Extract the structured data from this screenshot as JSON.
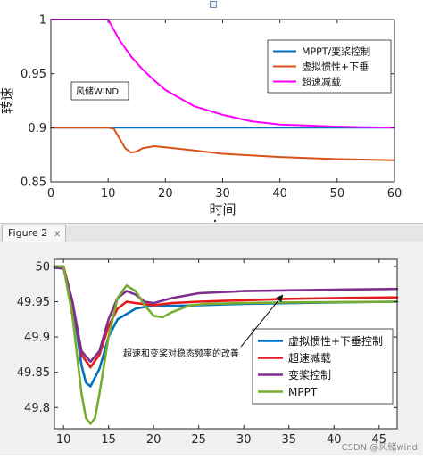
{
  "window": {
    "tab_label": "Figure 2",
    "tab_close": "x",
    "watermark": "CSDN @风储wind"
  },
  "chart_data": [
    {
      "type": "line",
      "xlabel": "时间",
      "ylabel": "转速",
      "xlim": [
        0,
        60
      ],
      "ylim": [
        0.85,
        1.0
      ],
      "xticks": [
        0,
        10,
        20,
        30,
        40,
        50,
        60
      ],
      "yticks": [
        0.85,
        0.9,
        0.95,
        1
      ],
      "ytick_labels": [
        "0.85",
        "0.9",
        "0.95",
        "1"
      ],
      "grid": false,
      "annotation": "风储WIND",
      "legend_position": "top-right",
      "series": [
        {
          "name": "MPPT/变桨控制",
          "color": "#0072BD",
          "x": [
            0,
            60
          ],
          "y": [
            0.9,
            0.9
          ]
        },
        {
          "name": "虚拟惯性+下垂",
          "color": "#D95319",
          "x": [
            0,
            10,
            11,
            12,
            13,
            14,
            15,
            16,
            18,
            20,
            25,
            30,
            40,
            50,
            60
          ],
          "y": [
            0.9,
            0.9,
            0.899,
            0.89,
            0.881,
            0.877,
            0.878,
            0.881,
            0.883,
            0.882,
            0.879,
            0.876,
            0.873,
            0.871,
            0.87
          ]
        },
        {
          "name": "超速减载",
          "color": "#FF00FF",
          "x": [
            0,
            10,
            12,
            14,
            16,
            18,
            20,
            25,
            30,
            35,
            40,
            45,
            50,
            55,
            60
          ],
          "y": [
            1.0,
            1.0,
            0.981,
            0.966,
            0.954,
            0.944,
            0.935,
            0.92,
            0.912,
            0.906,
            0.903,
            0.902,
            0.901,
            0.9005,
            0.9002
          ]
        }
      ]
    },
    {
      "type": "line",
      "xlabel": "",
      "ylabel": "",
      "xlim": [
        9,
        47
      ],
      "ylim": [
        49.77,
        50.01
      ],
      "xticks": [
        10,
        15,
        20,
        25,
        30,
        35,
        40,
        45
      ],
      "yticks": [
        49.8,
        49.85,
        49.9,
        49.95,
        50
      ],
      "ytick_labels": [
        "49.8",
        "49.85",
        "49.9",
        "49.95",
        "50"
      ],
      "grid": false,
      "annotation": "超速和变桨对稳态频率的改善",
      "legend_position": "lower-right",
      "series": [
        {
          "name": "虚拟惯性+下垂控制",
          "color": "#0072BD",
          "x": [
            9,
            10,
            11,
            12,
            12.5,
            13,
            14,
            15,
            16,
            18,
            20,
            22,
            25,
            30,
            35,
            40,
            47
          ],
          "y": [
            50.0,
            50.0,
            49.95,
            49.86,
            49.835,
            49.83,
            49.855,
            49.9,
            49.925,
            49.94,
            49.945,
            49.944,
            49.945,
            49.947,
            49.948,
            49.949,
            49.95
          ]
        },
        {
          "name": "超速减载",
          "color": "#E41A1C",
          "x": [
            9,
            10,
            11,
            12,
            13,
            14,
            15,
            16,
            17,
            18,
            20,
            22,
            25,
            30,
            35,
            40,
            47
          ],
          "y": [
            50.0,
            50.0,
            49.95,
            49.875,
            49.857,
            49.875,
            49.915,
            49.94,
            49.95,
            49.948,
            49.945,
            49.948,
            49.95,
            49.952,
            49.954,
            49.955,
            49.956
          ]
        },
        {
          "name": "变桨控制",
          "color": "#7E2F8E",
          "x": [
            9,
            10,
            11,
            12,
            13,
            14,
            15,
            16,
            17,
            18,
            19,
            20,
            22,
            25,
            30,
            35,
            40,
            47
          ],
          "y": [
            49.998,
            49.997,
            49.95,
            49.88,
            49.865,
            49.88,
            49.925,
            49.955,
            49.965,
            49.96,
            49.95,
            49.948,
            49.955,
            49.962,
            49.965,
            49.966,
            49.967,
            49.968
          ]
        },
        {
          "name": "MPPT",
          "color": "#77AC30",
          "x": [
            9,
            10,
            11,
            12,
            12.5,
            13,
            13.5,
            14,
            15,
            16,
            17,
            18,
            19,
            20,
            21,
            22,
            24,
            26,
            30,
            35,
            47
          ],
          "y": [
            50.0,
            50.0,
            49.93,
            49.82,
            49.785,
            49.777,
            49.785,
            49.82,
            49.9,
            49.955,
            49.973,
            49.965,
            49.945,
            49.93,
            49.928,
            49.935,
            49.945,
            49.947,
            49.948,
            49.949,
            49.95
          ]
        }
      ]
    }
  ]
}
